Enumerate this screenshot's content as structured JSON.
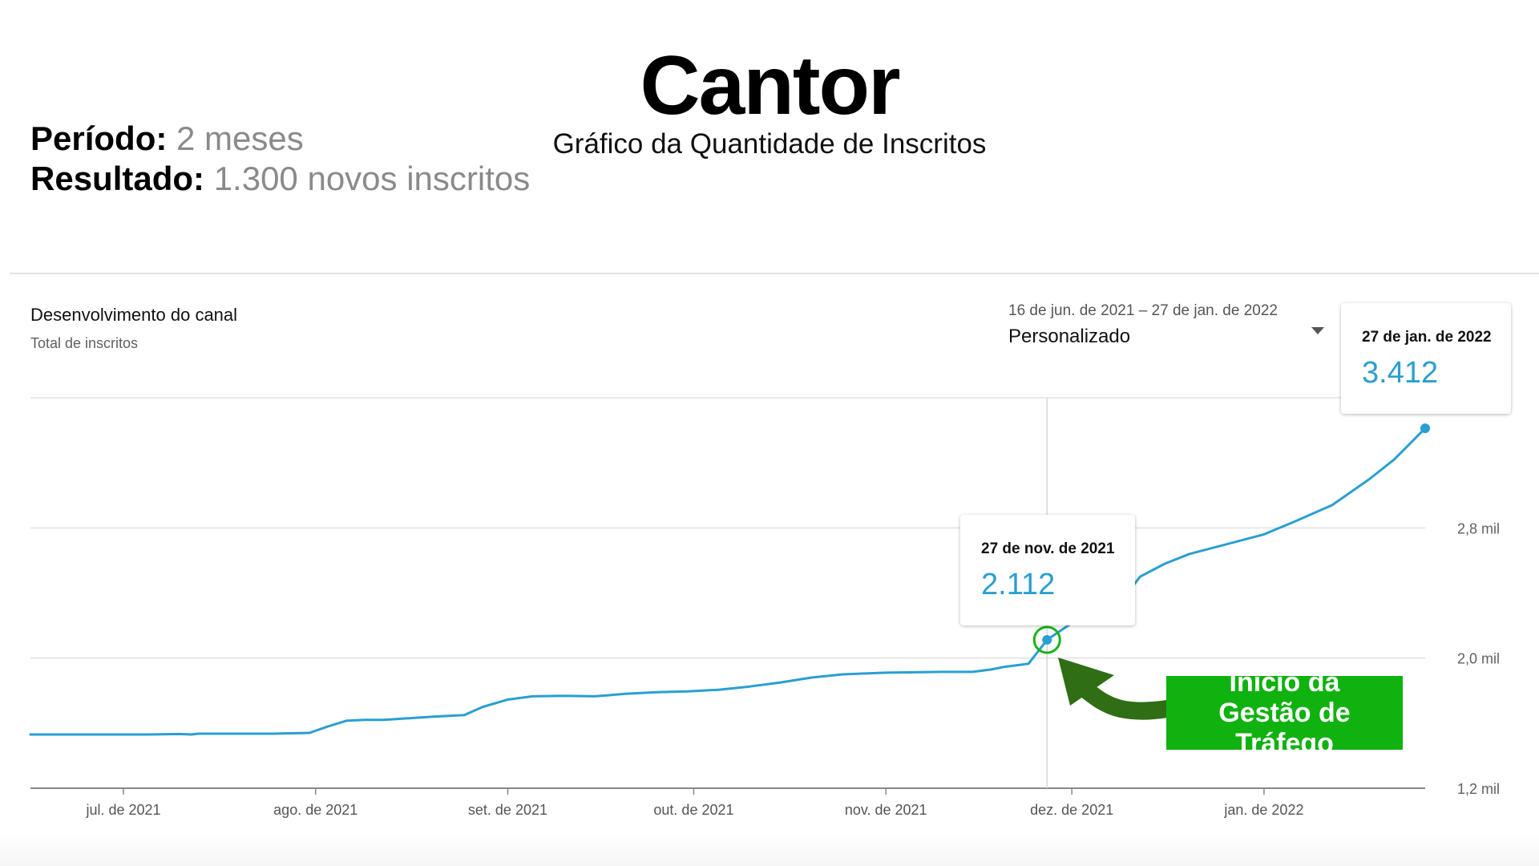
{
  "header": {
    "title": "Cantor",
    "subtitle": "Gráfico da Quantidade de Inscritos"
  },
  "stats": {
    "period_label": "Período:",
    "period_value": "2 meses",
    "result_label": "Resultado:",
    "result_value": "1.300 novos inscritos"
  },
  "card": {
    "title": "Desenvolvimento do canal",
    "subtitle": "Total de inscritos",
    "date_range": "16 de jun. de 2021 – 27 de jan. de 2022",
    "range_option": "Personalizado"
  },
  "tooltips": {
    "start": {
      "date": "27 de nov. de 2021",
      "value": "2.112"
    },
    "end": {
      "date": "27 de jan. de 2022",
      "value": "3.412"
    }
  },
  "annotation": {
    "line1": "Início da",
    "line2": "Gestão de Tráfego"
  },
  "colors": {
    "line": "#2a9fd0",
    "highlight": "#17b317",
    "arrow": "#2f6e14",
    "grid": "#e0e0e0",
    "axis": "#999999"
  },
  "chart_data": {
    "type": "line",
    "title": "Desenvolvimento do canal",
    "ylabel": "Total de inscritos",
    "x_ticks": [
      "jul. de 2021",
      "ago. de 2021",
      "set. de 2021",
      "out. de 2021",
      "nov. de 2021",
      "dez. de 2021",
      "jan. de 2022"
    ],
    "x_tick_dates": [
      "2021-07-01",
      "2021-08-01",
      "2021-09-01",
      "2021-10-01",
      "2021-11-01",
      "2021-12-01",
      "2022-01-01"
    ],
    "y_ticks": [
      "1,2 mil",
      "2,0 mil",
      "2,8 mil"
    ],
    "y_tick_values": [
      1200,
      2000,
      2800
    ],
    "xlim": [
      "2021-06-16",
      "2022-01-27"
    ],
    "ylim": [
      1200,
      3600
    ],
    "grid": true,
    "highlight_date": "2021-11-27",
    "series": [
      {
        "x": [
          "2021-06-16",
          "2021-06-25",
          "2021-07-05",
          "2021-07-10",
          "2021-07-12",
          "2021-07-13",
          "2021-07-15",
          "2021-07-25",
          "2021-07-31",
          "2021-08-03",
          "2021-08-06",
          "2021-08-09",
          "2021-08-12",
          "2021-08-20",
          "2021-08-25",
          "2021-08-28",
          "2021-09-01",
          "2021-09-05",
          "2021-09-10",
          "2021-09-15",
          "2021-09-20",
          "2021-09-25",
          "2021-09-30",
          "2021-10-05",
          "2021-10-10",
          "2021-10-15",
          "2021-10-20",
          "2021-10-25",
          "2021-11-01",
          "2021-11-10",
          "2021-11-15",
          "2021-11-18",
          "2021-11-20",
          "2021-11-24",
          "2021-11-27",
          "2021-12-01",
          "2021-12-05",
          "2021-12-09",
          "2021-12-10",
          "2021-12-12",
          "2021-12-16",
          "2021-12-20",
          "2021-12-25",
          "2022-01-01",
          "2022-01-06",
          "2022-01-12",
          "2022-01-18",
          "2022-01-22",
          "2022-01-27"
        ],
        "y": [
          1530,
          1530,
          1530,
          1533,
          1530,
          1535,
          1535,
          1535,
          1540,
          1580,
          1615,
          1620,
          1620,
          1640,
          1650,
          1700,
          1745,
          1765,
          1768,
          1765,
          1780,
          1790,
          1795,
          1805,
          1825,
          1850,
          1880,
          1900,
          1910,
          1915,
          1915,
          1930,
          1945,
          1965,
          2112,
          2215,
          2320,
          2360,
          2400,
          2500,
          2580,
          2640,
          2690,
          2760,
          2840,
          2940,
          3100,
          3220,
          3412
        ]
      }
    ]
  }
}
